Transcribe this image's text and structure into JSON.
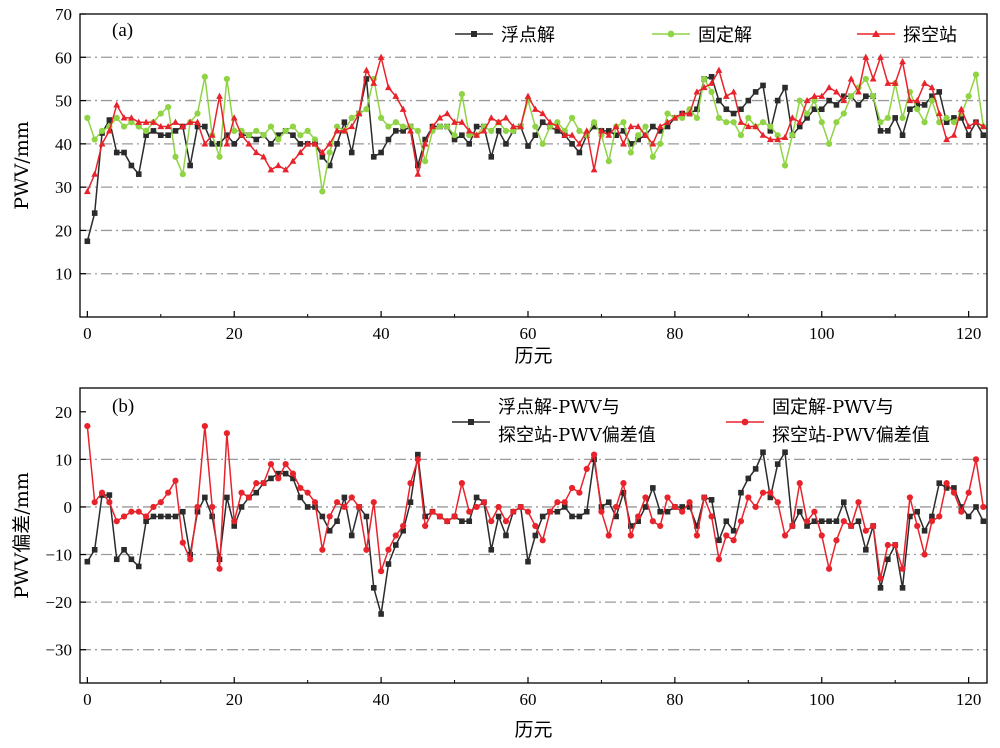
{
  "chart_data": [
    {
      "type": "line",
      "panel_label": "(a)",
      "xlabel": "历元",
      "ylabel": "PWV/mm",
      "xlim": [
        -1,
        122.5
      ],
      "ylim": [
        0,
        70
      ],
      "xticks": [
        0,
        20,
        40,
        60,
        80,
        100,
        120
      ],
      "yticks": [
        10,
        20,
        30,
        40,
        50,
        60,
        70
      ],
      "grid_lines": [
        10,
        20,
        30,
        40,
        50,
        60
      ],
      "grid": "horizontal dash-dot",
      "legend_position": "top",
      "series": [
        {
          "name": "浮点解",
          "color": "#2b2b2b",
          "marker": "square",
          "values": [
            17.5,
            24,
            42.5,
            45.5,
            38,
            38,
            35,
            33,
            42,
            43,
            42,
            42,
            43,
            44,
            35,
            44,
            44,
            40,
            40,
            42,
            40,
            42,
            42,
            41,
            42,
            40,
            42,
            43,
            42,
            40,
            40,
            40,
            37,
            35,
            40,
            45,
            38,
            47,
            55,
            37,
            38,
            41,
            43,
            43,
            44,
            35,
            41,
            44,
            44,
            44,
            41,
            42,
            40,
            44,
            44,
            37,
            43,
            40,
            43,
            44,
            39.5,
            42,
            45,
            44,
            43,
            42,
            40,
            38,
            42,
            44,
            43,
            43,
            42,
            43,
            40,
            41,
            42,
            44,
            43,
            44,
            46,
            47,
            47,
            48,
            55,
            55.5,
            50,
            48,
            47,
            48,
            50,
            52,
            53.5,
            43,
            50,
            53,
            42,
            44,
            46,
            48,
            48,
            50,
            49,
            51,
            51,
            49,
            51,
            51,
            43,
            43,
            46,
            42,
            48,
            49,
            49,
            51,
            52,
            45,
            46,
            46,
            42,
            45,
            42
          ]
        },
        {
          "name": "固定解",
          "color": "#8fd444",
          "marker": "circle",
          "values": [
            46,
            41,
            43,
            44,
            46,
            44,
            45,
            44,
            43,
            45,
            47,
            48.5,
            37,
            33,
            45,
            47,
            55.5,
            42,
            37,
            55,
            43,
            43,
            42,
            43,
            42,
            44,
            41,
            43,
            44,
            42,
            43,
            41,
            29,
            38,
            44,
            43,
            46,
            47,
            48,
            55,
            46,
            44,
            45,
            44,
            44,
            43,
            36,
            43,
            44,
            44,
            42,
            51.5,
            42,
            42,
            44,
            43,
            45,
            43,
            43,
            44,
            50,
            44,
            40,
            44,
            45,
            43,
            46,
            43,
            42,
            45,
            42,
            36,
            44,
            45,
            38,
            42,
            44,
            37,
            40,
            47,
            46,
            46,
            48,
            46,
            55,
            52,
            46,
            45,
            45,
            42,
            46,
            44,
            45,
            44,
            42,
            35,
            42,
            50,
            47,
            50,
            45,
            40,
            45,
            47,
            51,
            53,
            55,
            51,
            45,
            46,
            54,
            46,
            52,
            48,
            45,
            50,
            45,
            46,
            45,
            47,
            51,
            56,
            44
          ]
        },
        {
          "name": "探空站",
          "color": "#e8232b",
          "marker": "triangle",
          "values": [
            29,
            33,
            40,
            43,
            49,
            46,
            46,
            45,
            45,
            45,
            44,
            44,
            45,
            44,
            45,
            45,
            40,
            42,
            51,
            40,
            46,
            42,
            40,
            38,
            37,
            34,
            35,
            34,
            36,
            38,
            40,
            40,
            38,
            40,
            43,
            43,
            44,
            47,
            57,
            54,
            60,
            53,
            51,
            48,
            43,
            33,
            40,
            44,
            46,
            47,
            45,
            45,
            43,
            42,
            43,
            46,
            45,
            46,
            44,
            44,
            51,
            48,
            47,
            45,
            44,
            42,
            42,
            40,
            43,
            34,
            43,
            42,
            44,
            40,
            44,
            44,
            42,
            40,
            44,
            45,
            46,
            47,
            47,
            52,
            53,
            54,
            57,
            51,
            52,
            45,
            44,
            44,
            42,
            41,
            41,
            41.5,
            46,
            45,
            50,
            51,
            51,
            53,
            52,
            50,
            55,
            52,
            60,
            55,
            60,
            54,
            54,
            59,
            50,
            50,
            54,
            53,
            47,
            41,
            42,
            48,
            44,
            45,
            44
          ]
        }
      ]
    },
    {
      "type": "line",
      "panel_label": "(b)",
      "xlabel": "历元",
      "ylabel": "PWV偏差/mm",
      "xlim": [
        -1,
        122.5
      ],
      "ylim": [
        -37,
        25
      ],
      "xticks": [
        0,
        20,
        40,
        60,
        80,
        100,
        120
      ],
      "yticks": [
        -30,
        -20,
        -10,
        0,
        10,
        20
      ],
      "grid_lines": [
        -30,
        -20,
        -10,
        0,
        10
      ],
      "grid": "horizontal dash-dot",
      "legend_position": "top",
      "series": [
        {
          "name_lines": [
            "浮点解-PWV与",
            "探空站-PWV偏差值"
          ],
          "color": "#2b2b2b",
          "marker": "square",
          "values": [
            -11.5,
            -9,
            2.5,
            2.5,
            -11,
            -9,
            -11,
            -12.5,
            -3,
            -2,
            -2,
            -2,
            -2,
            -1,
            -10,
            -1,
            2,
            -2,
            -11,
            2,
            -4,
            0,
            2,
            3,
            5,
            6,
            7,
            7,
            6,
            2,
            0,
            0,
            -2,
            -5,
            -3,
            2,
            -6,
            0,
            -2,
            -17,
            -22.5,
            -12,
            -8,
            -5,
            1,
            11,
            -2,
            -1,
            -2,
            -3,
            -2,
            -3,
            -3,
            2,
            1,
            -9,
            -2,
            -6,
            -1,
            0,
            -11.5,
            -6,
            -2,
            -1,
            -1,
            0,
            -2,
            -2,
            -1,
            10,
            0,
            1,
            -2,
            3,
            -4,
            -3,
            0,
            4,
            -1,
            -1,
            0,
            0,
            0,
            -4,
            2,
            1.5,
            -7,
            -3,
            -5,
            3,
            6,
            8,
            11.5,
            2,
            9,
            11.5,
            -4,
            -1,
            -4,
            -3,
            -3,
            -3,
            -3,
            1,
            -4,
            -3,
            -9,
            -4,
            -17,
            -11,
            -8,
            -17,
            -2,
            -1,
            -5,
            -2,
            5,
            4,
            4,
            0,
            -2,
            0,
            -3
          ]
        },
        {
          "name_lines": [
            "固定解-PWV与",
            "探空站-PWV偏差值"
          ],
          "color": "#e8232b",
          "marker": "circle",
          "values": [
            17,
            1,
            3,
            1,
            -3,
            -2,
            -1,
            -1,
            -2,
            0,
            1,
            3,
            5.5,
            -7.5,
            -11,
            0,
            17,
            0,
            -13,
            15.5,
            -3,
            3,
            2,
            5,
            5,
            9,
            6,
            9,
            7,
            4,
            3,
            1,
            -9,
            -2,
            1,
            0,
            2,
            0,
            -9,
            1,
            -13.5,
            -9,
            -6,
            -4,
            5,
            10,
            -4,
            -1,
            -2,
            -3,
            -2,
            5,
            -1,
            0,
            1,
            -3,
            0,
            -3,
            -1,
            0,
            -1,
            -4,
            -7,
            -1,
            1,
            1,
            4,
            3,
            8,
            11,
            -1,
            -6,
            0,
            5,
            -6,
            -2,
            2,
            -3,
            -4,
            2,
            0,
            -1,
            1,
            -6,
            2,
            -2,
            -11,
            -6,
            -7,
            -3,
            2,
            0,
            3,
            3,
            1,
            -6,
            -4,
            5,
            -3,
            -1,
            -6,
            -13,
            -7,
            -3,
            -4,
            1,
            -5,
            -4,
            -15,
            -8,
            -8,
            -13,
            2,
            -4,
            -10,
            -3,
            -2,
            5,
            3,
            -1,
            3,
            10,
            0
          ]
        }
      ]
    }
  ]
}
